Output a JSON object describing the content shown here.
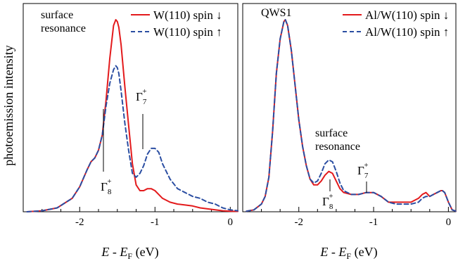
{
  "figure": {
    "ylabel": "photoemission intensity"
  },
  "chart_data": [
    {
      "type": "line",
      "xlabel": "E - E_F (eV)",
      "xlabel_parts": {
        "E": "E",
        "dash": " - ",
        "EF": "E",
        "F": "F",
        "unit": " (eV)"
      },
      "ylabel": "photoemission intensity",
      "xlim": [
        -2.75,
        0.1
      ],
      "ylim": [
        0,
        1
      ],
      "x_ticks": [
        -2,
        -1,
        0
      ],
      "x_tick_labels": [
        "-2",
        "-1",
        "0"
      ],
      "grid": false,
      "legend_position": "top-right",
      "colors": {
        "down": "#e31a1c",
        "up": "#2b4ea2"
      },
      "series": [
        {
          "name": "W(110) spin ↓",
          "style": "solid",
          "x": [
            -2.7,
            -2.5,
            -2.3,
            -2.1,
            -2.0,
            -1.9,
            -1.85,
            -1.8,
            -1.75,
            -1.7,
            -1.65,
            -1.6,
            -1.55,
            -1.52,
            -1.5,
            -1.48,
            -1.45,
            -1.4,
            -1.35,
            -1.3,
            -1.25,
            -1.2,
            -1.15,
            -1.1,
            -1.05,
            -1.0,
            -0.95,
            -0.9,
            -0.8,
            -0.7,
            -0.6,
            -0.5,
            -0.4,
            -0.3,
            -0.2,
            -0.1,
            0.0,
            0.1
          ],
          "values": [
            0.0,
            0.005,
            0.02,
            0.07,
            0.13,
            0.22,
            0.26,
            0.28,
            0.32,
            0.4,
            0.58,
            0.8,
            0.97,
            1.0,
            0.99,
            0.96,
            0.87,
            0.65,
            0.45,
            0.25,
            0.14,
            0.11,
            0.11,
            0.12,
            0.12,
            0.11,
            0.09,
            0.07,
            0.05,
            0.04,
            0.035,
            0.03,
            0.02,
            0.015,
            0.01,
            0.005,
            0.003,
            0.002
          ]
        },
        {
          "name": "W(110) spin ↑",
          "style": "dashed",
          "x": [
            -2.7,
            -2.5,
            -2.3,
            -2.1,
            -2.0,
            -1.9,
            -1.85,
            -1.8,
            -1.75,
            -1.7,
            -1.65,
            -1.6,
            -1.55,
            -1.52,
            -1.5,
            -1.48,
            -1.45,
            -1.4,
            -1.35,
            -1.3,
            -1.25,
            -1.2,
            -1.15,
            -1.1,
            -1.05,
            -1.0,
            -0.95,
            -0.9,
            -0.8,
            -0.7,
            -0.6,
            -0.5,
            -0.4,
            -0.3,
            -0.2,
            -0.1,
            0.0,
            0.1
          ],
          "values": [
            0.0,
            0.005,
            0.02,
            0.07,
            0.13,
            0.22,
            0.26,
            0.28,
            0.32,
            0.4,
            0.55,
            0.67,
            0.74,
            0.76,
            0.75,
            0.72,
            0.63,
            0.46,
            0.32,
            0.2,
            0.18,
            0.2,
            0.24,
            0.3,
            0.33,
            0.33,
            0.31,
            0.25,
            0.17,
            0.12,
            0.1,
            0.08,
            0.07,
            0.05,
            0.04,
            0.02,
            0.01,
            0.005
          ]
        }
      ],
      "annotations": {
        "resonance_line1": "surface",
        "resonance_line2": "resonance",
        "gamma7": "Γ",
        "gamma7_sub": "7",
        "gamma7_sup": "+",
        "gamma8": "Γ",
        "gamma8_sub": "8",
        "gamma8_sup": "+"
      }
    },
    {
      "type": "line",
      "xlabel": "E - E_F (eV)",
      "xlabel_parts": {
        "E": "E",
        "dash": " - ",
        "EF": "E",
        "F": "F",
        "unit": " (eV)"
      },
      "xlim": [
        -2.75,
        0.1
      ],
      "ylim": [
        0,
        1
      ],
      "x_ticks": [
        -2,
        -1,
        0
      ],
      "x_tick_labels": [
        "-2",
        "-1",
        "0"
      ],
      "grid": false,
      "legend_position": "top-right",
      "colors": {
        "down": "#e31a1c",
        "up": "#2b4ea2"
      },
      "series": [
        {
          "name": "Al/W(110) spin ↓",
          "style": "solid",
          "x": [
            -2.7,
            -2.6,
            -2.5,
            -2.45,
            -2.4,
            -2.35,
            -2.3,
            -2.25,
            -2.2,
            -2.18,
            -2.15,
            -2.1,
            -2.05,
            -2.0,
            -1.95,
            -1.9,
            -1.85,
            -1.8,
            -1.75,
            -1.7,
            -1.65,
            -1.6,
            -1.55,
            -1.5,
            -1.45,
            -1.4,
            -1.3,
            -1.2,
            -1.1,
            -1.05,
            -1.0,
            -0.9,
            -0.8,
            -0.7,
            -0.6,
            -0.5,
            -0.4,
            -0.35,
            -0.3,
            -0.25,
            -0.2,
            -0.15,
            -0.1,
            -0.08,
            -0.05,
            0.0,
            0.05,
            0.1
          ],
          "values": [
            0.003,
            0.01,
            0.04,
            0.08,
            0.18,
            0.42,
            0.72,
            0.9,
            0.99,
            1.0,
            0.97,
            0.84,
            0.66,
            0.48,
            0.34,
            0.24,
            0.17,
            0.14,
            0.14,
            0.16,
            0.19,
            0.21,
            0.2,
            0.16,
            0.12,
            0.1,
            0.09,
            0.09,
            0.1,
            0.1,
            0.1,
            0.08,
            0.05,
            0.05,
            0.05,
            0.05,
            0.07,
            0.09,
            0.1,
            0.08,
            0.09,
            0.1,
            0.11,
            0.11,
            0.1,
            0.05,
            0.01,
            0.003
          ]
        },
        {
          "name": "Al/W(110) spin ↑",
          "style": "dashed",
          "x": [
            -2.7,
            -2.6,
            -2.5,
            -2.45,
            -2.4,
            -2.35,
            -2.3,
            -2.25,
            -2.2,
            -2.18,
            -2.15,
            -2.1,
            -2.05,
            -2.0,
            -1.95,
            -1.9,
            -1.85,
            -1.8,
            -1.75,
            -1.7,
            -1.65,
            -1.6,
            -1.55,
            -1.5,
            -1.45,
            -1.4,
            -1.3,
            -1.2,
            -1.1,
            -1.05,
            -1.0,
            -0.9,
            -0.8,
            -0.7,
            -0.6,
            -0.5,
            -0.4,
            -0.35,
            -0.3,
            -0.25,
            -0.2,
            -0.15,
            -0.1,
            -0.08,
            -0.05,
            0.0,
            0.05,
            0.1
          ],
          "values": [
            0.003,
            0.01,
            0.04,
            0.08,
            0.18,
            0.42,
            0.72,
            0.9,
            0.99,
            1.0,
            0.97,
            0.84,
            0.66,
            0.48,
            0.34,
            0.24,
            0.17,
            0.15,
            0.16,
            0.2,
            0.25,
            0.27,
            0.26,
            0.21,
            0.15,
            0.11,
            0.09,
            0.09,
            0.1,
            0.1,
            0.1,
            0.08,
            0.05,
            0.04,
            0.04,
            0.04,
            0.05,
            0.07,
            0.08,
            0.08,
            0.09,
            0.1,
            0.11,
            0.11,
            0.1,
            0.05,
            0.01,
            0.003
          ]
        }
      ],
      "annotations": {
        "qws": "QWS1",
        "resonance_line1": "surface",
        "resonance_line2": "resonance",
        "gamma7": "Γ",
        "gamma7_sub": "7",
        "gamma7_sup": "+",
        "gamma8": "Γ",
        "gamma8_sub": "8",
        "gamma8_sup": "+"
      }
    }
  ]
}
